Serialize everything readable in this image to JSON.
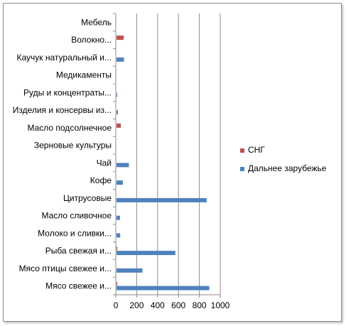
{
  "chart_data": {
    "type": "bar",
    "orientation": "horizontal",
    "categories": [
      "Мясо свежее и...",
      "Мясо птицы свежее и...",
      "Рыба свежая и...",
      "Молоко и сливки...",
      "Масло сливочное",
      "Цитрусовые",
      "Кофе",
      "Чай",
      "Зерновые культуры",
      "Масло подсолнечное",
      "Изделия и консервы из...",
      "Руды и концентраты...",
      "Медикаменты",
      "Каучук натуральный и...",
      "Волокно...",
      "Мебель"
    ],
    "series": [
      {
        "name": "Дальнее зарубежье",
        "color": "#4f81bd",
        "values": [
          895,
          255,
          570,
          42,
          40,
          870,
          68,
          125,
          0,
          0,
          20,
          12,
          0,
          78,
          0,
          0
        ]
      },
      {
        "name": "СНГ",
        "color": "#c0504d",
        "values": [
          3,
          0,
          5,
          0,
          0,
          0,
          0,
          0,
          0,
          48,
          0,
          0,
          0,
          0,
          75,
          0
        ]
      }
    ],
    "xlim": [
      0,
      1000
    ],
    "xticks": [
      "0",
      "200",
      "400",
      "600",
      "800",
      "1000"
    ],
    "grid": "vertical",
    "legend": "right"
  }
}
